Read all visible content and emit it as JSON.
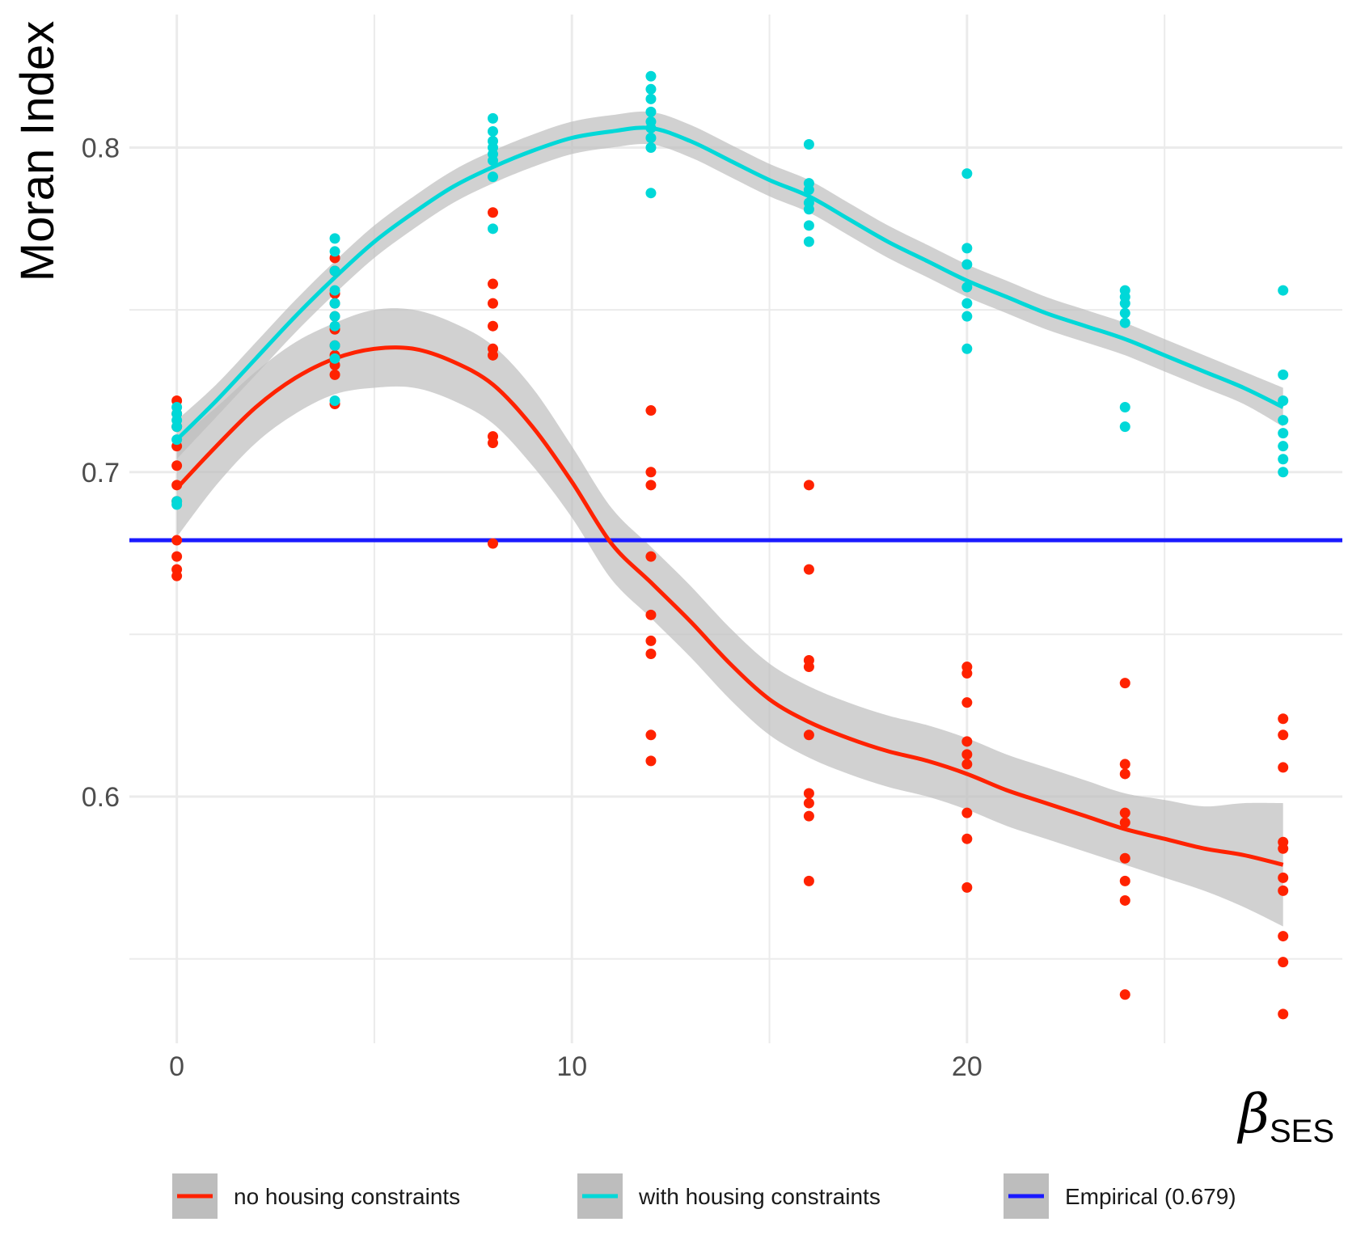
{
  "chart_data": {
    "type": "scatter",
    "title": "",
    "ylabel": "Moran Index",
    "xlabel_symbol": "β",
    "xlabel_subscript": "SES",
    "xlim": [
      -1.2,
      29.5
    ],
    "ylim": [
      0.524,
      0.841
    ],
    "x_ticks": [
      0,
      10,
      20
    ],
    "x_tick_labels": [
      "0",
      "10",
      "20"
    ],
    "x_minor_ticks": [
      5,
      15,
      25
    ],
    "y_ticks": [
      0.6,
      0.7,
      0.8
    ],
    "y_tick_labels": [
      "0.6",
      "0.7",
      "0.8"
    ],
    "y_minor_ticks": [
      0.55,
      0.65,
      0.75
    ],
    "grid": true,
    "legend_position": "bottom",
    "series": [
      {
        "name": "no housing constraints",
        "color": "#ff2200",
        "kind": "points+smooth",
        "points": [
          [
            0,
            0.722
          ],
          [
            0,
            0.718
          ],
          [
            0,
            0.714
          ],
          [
            0,
            0.708
          ],
          [
            0,
            0.702
          ],
          [
            0,
            0.696
          ],
          [
            0,
            0.691
          ],
          [
            0,
            0.679
          ],
          [
            0,
            0.674
          ],
          [
            0,
            0.67
          ],
          [
            0,
            0.668
          ],
          [
            4,
            0.766
          ],
          [
            4,
            0.762
          ],
          [
            4,
            0.755
          ],
          [
            4,
            0.752
          ],
          [
            4,
            0.748
          ],
          [
            4,
            0.744
          ],
          [
            4,
            0.739
          ],
          [
            4,
            0.736
          ],
          [
            4,
            0.733
          ],
          [
            4,
            0.73
          ],
          [
            4,
            0.721
          ],
          [
            8,
            0.78
          ],
          [
            8,
            0.758
          ],
          [
            8,
            0.752
          ],
          [
            8,
            0.745
          ],
          [
            8,
            0.738
          ],
          [
            8,
            0.736
          ],
          [
            8,
            0.711
          ],
          [
            8,
            0.709
          ],
          [
            8,
            0.678
          ],
          [
            12,
            0.719
          ],
          [
            12,
            0.7
          ],
          [
            12,
            0.696
          ],
          [
            12,
            0.674
          ],
          [
            12,
            0.656
          ],
          [
            12,
            0.648
          ],
          [
            12,
            0.644
          ],
          [
            12,
            0.619
          ],
          [
            12,
            0.611
          ],
          [
            16,
            0.696
          ],
          [
            16,
            0.67
          ],
          [
            16,
            0.642
          ],
          [
            16,
            0.64
          ],
          [
            16,
            0.619
          ],
          [
            16,
            0.601
          ],
          [
            16,
            0.598
          ],
          [
            16,
            0.594
          ],
          [
            16,
            0.574
          ],
          [
            20,
            0.64
          ],
          [
            20,
            0.638
          ],
          [
            20,
            0.629
          ],
          [
            20,
            0.617
          ],
          [
            20,
            0.613
          ],
          [
            20,
            0.61
          ],
          [
            20,
            0.595
          ],
          [
            20,
            0.587
          ],
          [
            20,
            0.572
          ],
          [
            24,
            0.635
          ],
          [
            24,
            0.61
          ],
          [
            24,
            0.607
          ],
          [
            24,
            0.595
          ],
          [
            24,
            0.592
          ],
          [
            24,
            0.581
          ],
          [
            24,
            0.574
          ],
          [
            24,
            0.568
          ],
          [
            24,
            0.539
          ],
          [
            28,
            0.624
          ],
          [
            28,
            0.619
          ],
          [
            28,
            0.609
          ],
          [
            28,
            0.586
          ],
          [
            28,
            0.584
          ],
          [
            28,
            0.575
          ],
          [
            28,
            0.571
          ],
          [
            28,
            0.557
          ],
          [
            28,
            0.549
          ],
          [
            28,
            0.533
          ]
        ],
        "smooth": [
          [
            0,
            0.695
          ],
          [
            1,
            0.708
          ],
          [
            2,
            0.72
          ],
          [
            3,
            0.729
          ],
          [
            4,
            0.735
          ],
          [
            5,
            0.738
          ],
          [
            6,
            0.738
          ],
          [
            7,
            0.734
          ],
          [
            8,
            0.727
          ],
          [
            9,
            0.714
          ],
          [
            10,
            0.697
          ],
          [
            11,
            0.678
          ],
          [
            12,
            0.666
          ],
          [
            13,
            0.654
          ],
          [
            14,
            0.641
          ],
          [
            15,
            0.63
          ],
          [
            16,
            0.623
          ],
          [
            17,
            0.618
          ],
          [
            18,
            0.614
          ],
          [
            19,
            0.611
          ],
          [
            20,
            0.607
          ],
          [
            21,
            0.602
          ],
          [
            22,
            0.598
          ],
          [
            23,
            0.594
          ],
          [
            24,
            0.59
          ],
          [
            25,
            0.587
          ],
          [
            26,
            0.584
          ],
          [
            27,
            0.582
          ],
          [
            28,
            0.579
          ]
        ],
        "band_halfwidth": [
          0.015,
          0.012,
          0.011,
          0.011,
          0.011,
          0.012,
          0.012,
          0.012,
          0.012,
          0.012,
          0.011,
          0.011,
          0.011,
          0.011,
          0.011,
          0.011,
          0.011,
          0.011,
          0.011,
          0.011,
          0.011,
          0.011,
          0.011,
          0.011,
          0.011,
          0.012,
          0.013,
          0.016,
          0.019
        ]
      },
      {
        "name": "with housing constraints",
        "color": "#00d8d8",
        "kind": "points+smooth",
        "points": [
          [
            0,
            0.72
          ],
          [
            0,
            0.718
          ],
          [
            0,
            0.716
          ],
          [
            0,
            0.714
          ],
          [
            0,
            0.71
          ],
          [
            0,
            0.691
          ],
          [
            0,
            0.69
          ],
          [
            4,
            0.772
          ],
          [
            4,
            0.768
          ],
          [
            4,
            0.762
          ],
          [
            4,
            0.756
          ],
          [
            4,
            0.752
          ],
          [
            4,
            0.748
          ],
          [
            4,
            0.745
          ],
          [
            4,
            0.739
          ],
          [
            4,
            0.735
          ],
          [
            4,
            0.722
          ],
          [
            8,
            0.809
          ],
          [
            8,
            0.805
          ],
          [
            8,
            0.802
          ],
          [
            8,
            0.8
          ],
          [
            8,
            0.798
          ],
          [
            8,
            0.796
          ],
          [
            8,
            0.791
          ],
          [
            8,
            0.775
          ],
          [
            12,
            0.822
          ],
          [
            12,
            0.818
          ],
          [
            12,
            0.815
          ],
          [
            12,
            0.811
          ],
          [
            12,
            0.808
          ],
          [
            12,
            0.806
          ],
          [
            12,
            0.803
          ],
          [
            12,
            0.8
          ],
          [
            12,
            0.786
          ],
          [
            16,
            0.801
          ],
          [
            16,
            0.789
          ],
          [
            16,
            0.787
          ],
          [
            16,
            0.783
          ],
          [
            16,
            0.781
          ],
          [
            16,
            0.776
          ],
          [
            16,
            0.771
          ],
          [
            20,
            0.792
          ],
          [
            20,
            0.769
          ],
          [
            20,
            0.764
          ],
          [
            20,
            0.757
          ],
          [
            20,
            0.752
          ],
          [
            20,
            0.748
          ],
          [
            20,
            0.738
          ],
          [
            24,
            0.756
          ],
          [
            24,
            0.754
          ],
          [
            24,
            0.752
          ],
          [
            24,
            0.749
          ],
          [
            24,
            0.746
          ],
          [
            24,
            0.72
          ],
          [
            24,
            0.714
          ],
          [
            28,
            0.756
          ],
          [
            28,
            0.73
          ],
          [
            28,
            0.722
          ],
          [
            28,
            0.716
          ],
          [
            28,
            0.712
          ],
          [
            28,
            0.708
          ],
          [
            28,
            0.704
          ],
          [
            28,
            0.7
          ]
        ],
        "smooth": [
          [
            0,
            0.71
          ],
          [
            1,
            0.722
          ],
          [
            2,
            0.735
          ],
          [
            3,
            0.748
          ],
          [
            4,
            0.76
          ],
          [
            5,
            0.771
          ],
          [
            6,
            0.78
          ],
          [
            7,
            0.788
          ],
          [
            8,
            0.794
          ],
          [
            9,
            0.799
          ],
          [
            10,
            0.803
          ],
          [
            11,
            0.805
          ],
          [
            12,
            0.806
          ],
          [
            13,
            0.802
          ],
          [
            14,
            0.796
          ],
          [
            15,
            0.79
          ],
          [
            16,
            0.785
          ],
          [
            17,
            0.778
          ],
          [
            18,
            0.771
          ],
          [
            19,
            0.765
          ],
          [
            20,
            0.759
          ],
          [
            21,
            0.754
          ],
          [
            22,
            0.749
          ],
          [
            23,
            0.745
          ],
          [
            24,
            0.741
          ],
          [
            25,
            0.736
          ],
          [
            26,
            0.731
          ],
          [
            27,
            0.726
          ],
          [
            28,
            0.72
          ]
        ],
        "band_halfwidth": [
          0.006,
          0.005,
          0.005,
          0.005,
          0.005,
          0.005,
          0.005,
          0.005,
          0.005,
          0.005,
          0.005,
          0.005,
          0.005,
          0.005,
          0.005,
          0.005,
          0.005,
          0.005,
          0.005,
          0.005,
          0.005,
          0.005,
          0.005,
          0.005,
          0.005,
          0.005,
          0.005,
          0.005,
          0.006
        ]
      },
      {
        "name": "Empirical (0.679)",
        "color": "#1a1aff",
        "kind": "hline",
        "y": 0.679
      }
    ],
    "legend": [
      {
        "label": "no housing constraints",
        "color": "#ff2200"
      },
      {
        "label": "with housing constraints",
        "color": "#00d8d8"
      },
      {
        "label": "Empirical (0.679)",
        "color": "#1a1aff"
      }
    ],
    "band_color": "#bdbdbd",
    "grid_color": "#ebebeb"
  }
}
